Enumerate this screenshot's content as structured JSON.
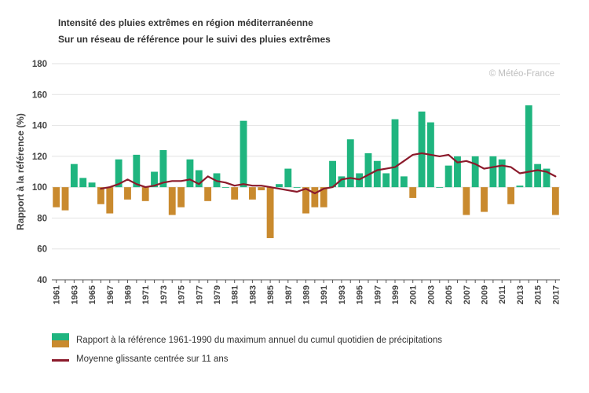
{
  "title": "Intensité des pluies extrêmes en région méditerranéenne",
  "subtitle": "Sur un réseau de référence pour le suivi des pluies extrêmes",
  "watermark": "© Météo-France",
  "colors": {
    "above": "#1fb57f",
    "below": "#c98a2e",
    "line": "#8b1a2b",
    "grid": "#e2e2e2",
    "axis": "#555555"
  },
  "legend": {
    "bars_label": "Rapport à la référence 1961-1990 du maximum annuel du cumul quotidien de précipitations",
    "line_label": "Moyenne glissante centrée sur 11 ans"
  },
  "chart_data": {
    "type": "bar",
    "title": "Intensité des pluies extrêmes en région méditerranéenne",
    "subtitle": "Sur un réseau de référence pour le suivi des pluies extrêmes",
    "xlabel": "",
    "ylabel": "Rapport à la référence (%)",
    "ylim": [
      40,
      180
    ],
    "yticks": [
      40,
      60,
      80,
      100,
      120,
      140,
      160,
      180
    ],
    "baseline": 100,
    "grid": true,
    "legend_position": "bottom",
    "x_tick_labels": [
      "1961",
      "1963",
      "1965",
      "1967",
      "1969",
      "1971",
      "1973",
      "1975",
      "1977",
      "1979",
      "1981",
      "1983",
      "1985",
      "1987",
      "1989",
      "1991",
      "1993",
      "1995",
      "1997",
      "1999",
      "2001",
      "2003",
      "2005",
      "2007",
      "2009",
      "2011",
      "2013",
      "2015",
      "2017"
    ],
    "years": [
      1961,
      1962,
      1963,
      1964,
      1965,
      1966,
      1967,
      1968,
      1969,
      1970,
      1971,
      1972,
      1973,
      1974,
      1975,
      1976,
      1977,
      1978,
      1979,
      1980,
      1981,
      1982,
      1983,
      1984,
      1985,
      1986,
      1987,
      1988,
      1989,
      1990,
      1991,
      1992,
      1993,
      1994,
      1995,
      1996,
      1997,
      1998,
      1999,
      2000,
      2001,
      2002,
      2003,
      2004,
      2005,
      2006,
      2007,
      2008,
      2009,
      2010,
      2011,
      2012,
      2013,
      2014,
      2015,
      2016,
      2017
    ],
    "series": [
      {
        "name": "Rapport à la référence 1961-1990 du maximum annuel du cumul quotidien de précipitations",
        "type": "bar",
        "values": [
          87,
          85,
          115,
          106,
          103,
          89,
          83,
          118,
          92,
          121,
          91,
          110,
          124,
          82,
          87,
          118,
          111,
          91,
          109,
          100,
          92,
          143,
          92,
          98,
          67,
          102,
          112,
          100,
          83,
          87,
          87,
          117,
          107,
          131,
          109,
          122,
          117,
          109,
          144,
          107,
          93,
          149,
          142,
          100,
          114,
          120,
          82,
          120,
          84,
          120,
          118,
          89,
          101,
          153,
          115,
          112,
          82
        ]
      },
      {
        "name": "Moyenne glissante centrée sur 11 ans",
        "type": "line",
        "start_year": 1966,
        "values": [
          99,
          100,
          102,
          105,
          102,
          100,
          101,
          103,
          104,
          104,
          105,
          102,
          107,
          104,
          103,
          101,
          102,
          101,
          101,
          100,
          99,
          98,
          97,
          99,
          96,
          99,
          100,
          105,
          106,
          105,
          108,
          111,
          112,
          113,
          117,
          121,
          122,
          121,
          120,
          121,
          116,
          117,
          115,
          112,
          113,
          114,
          113,
          109,
          110,
          111,
          110,
          107
        ]
      }
    ]
  }
}
